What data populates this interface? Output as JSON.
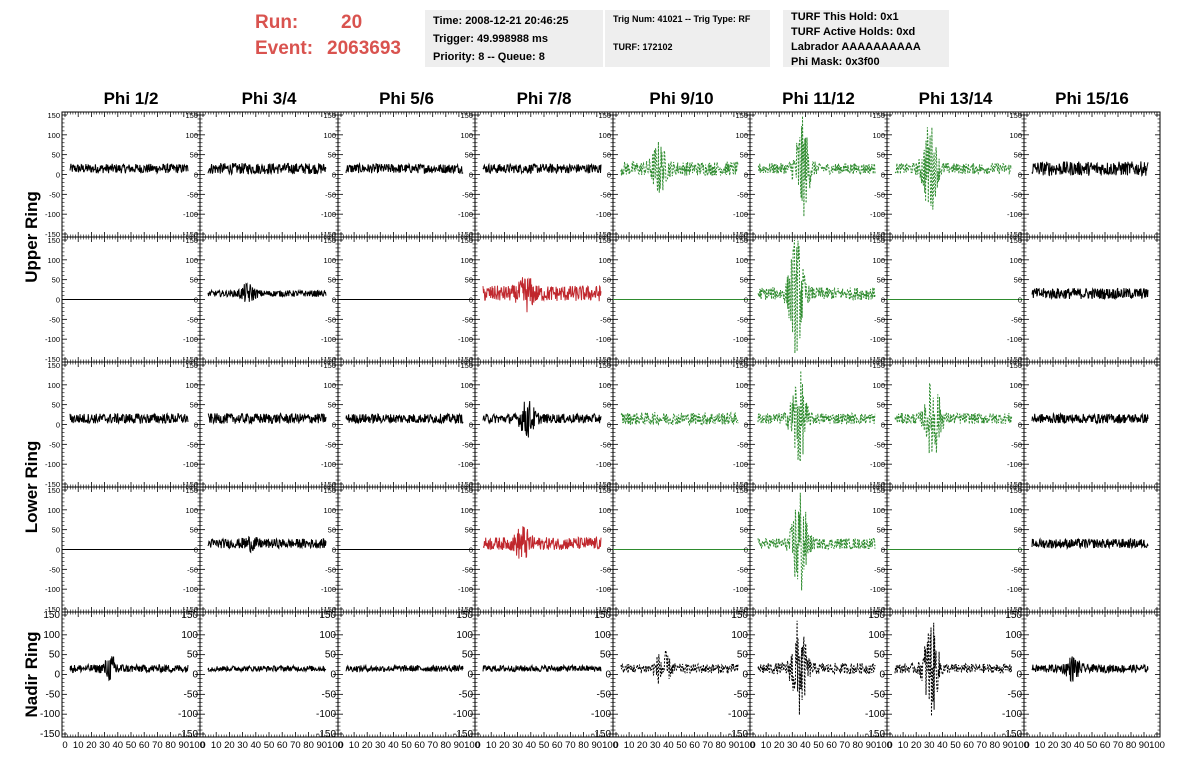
{
  "run_info": {
    "run_label": "Run:",
    "run_value": "20",
    "event_label": "Event:",
    "event_value": "2063693"
  },
  "time_box": {
    "time": "Time: 2008-12-21 20:46:25",
    "trigger": "Trigger: 49.998988 ms",
    "priority": "Priority: 8 -- Queue: 8"
  },
  "trig_box": {
    "trig": "Trig Num: 41021 -- Trig Type: RF",
    "turf": "TURF: 172102"
  },
  "turf_box": {
    "hold": "TURF This Hold: 0x1",
    "active": "TURF Active Holds: 0xd",
    "labrador": "Labrador AAAAAAAAAA",
    "phimask": "Phi Mask: 0x3f00"
  },
  "colors": {
    "normal": "#000000",
    "red": "#c0272d",
    "green": "#2e8b2e",
    "info_bg": "#eeeeee",
    "run_text": "#d9534f"
  },
  "chart_data": {
    "type": "line",
    "columns": [
      "Phi 1/2",
      "Phi 3/4",
      "Phi 5/6",
      "Phi 7/8",
      "Phi 9/10",
      "Phi 11/12",
      "Phi 13/14",
      "Phi 15/16"
    ],
    "ring_labels": [
      "Upper Ring",
      "Lower Ring",
      "Nadir Ring"
    ],
    "y_ticks": [
      "150",
      "100",
      "50",
      "0",
      "-50",
      "-100",
      "-150"
    ],
    "x_ticks_row": "0 10 20 30 40 50 60 70 80 90 100",
    "xlim": [
      0,
      100
    ],
    "ylim": [
      -150,
      150
    ],
    "rows": [
      {
        "styles": [
          "black",
          "black",
          "black",
          "black",
          "green-dash",
          "green-dash",
          "green-dash",
          "black"
        ],
        "amp": [
          12,
          14,
          12,
          12,
          18,
          14,
          14,
          18
        ],
        "flat": [
          false,
          false,
          false,
          false,
          false,
          false,
          false,
          false
        ],
        "burst": [
          0,
          0,
          0,
          0,
          55,
          120,
          110,
          0
        ]
      },
      {
        "styles": [
          "flat",
          "black",
          "flat",
          "red",
          "flat-green",
          "green-dash",
          "flat-green",
          "black"
        ],
        "amp": [
          0,
          8,
          0,
          20,
          0,
          16,
          0,
          14
        ],
        "flat": [
          true,
          false,
          true,
          false,
          true,
          false,
          true,
          false
        ],
        "burst": [
          0,
          20,
          0,
          30,
          0,
          140,
          0,
          0
        ]
      },
      {
        "styles": [
          "black",
          "black",
          "black",
          "black",
          "green-dash",
          "green-dash",
          "green-dash",
          "black"
        ],
        "amp": [
          13,
          13,
          12,
          12,
          16,
          14,
          14,
          12
        ],
        "flat": [
          false,
          false,
          false,
          false,
          false,
          false,
          false,
          false
        ],
        "burst": [
          0,
          0,
          0,
          40,
          0,
          120,
          100,
          0
        ]
      },
      {
        "styles": [
          "flat",
          "black",
          "flat",
          "red",
          "flat-green",
          "green-dash",
          "flat-green",
          "black"
        ],
        "amp": [
          0,
          12,
          0,
          16,
          0,
          14,
          0,
          12
        ],
        "flat": [
          true,
          false,
          true,
          false,
          true,
          false,
          true,
          false
        ],
        "burst": [
          0,
          10,
          0,
          35,
          0,
          140,
          0,
          0
        ]
      },
      {
        "styles": [
          "black",
          "black",
          "black",
          "black",
          "black-dash",
          "black-dash",
          "black-dash",
          "black"
        ],
        "amp": [
          10,
          7,
          8,
          8,
          12,
          14,
          12,
          10
        ],
        "flat": [
          false,
          false,
          false,
          false,
          false,
          false,
          false,
          false
        ],
        "burst": [
          25,
          0,
          0,
          0,
          40,
          120,
          120,
          25
        ]
      }
    ]
  }
}
